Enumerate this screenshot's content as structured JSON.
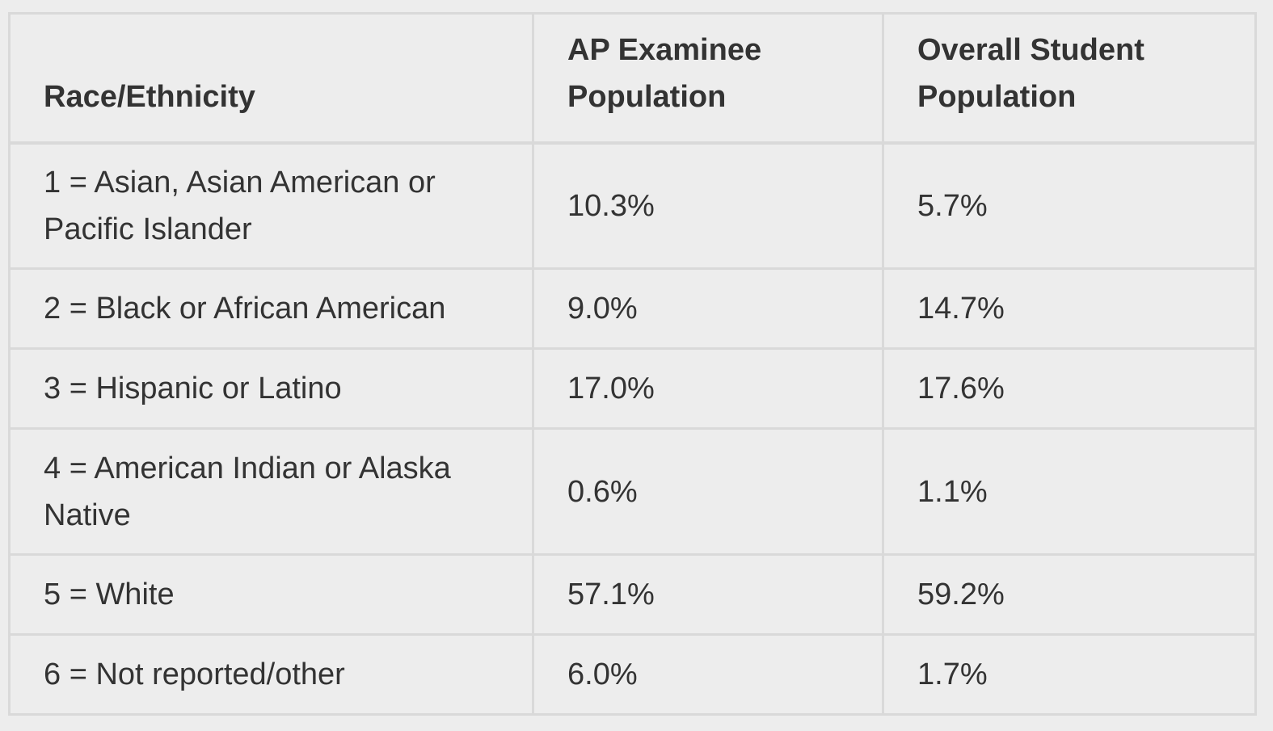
{
  "table": {
    "headers": [
      "Race/Ethnicity",
      "AP Examinee Population",
      "Overall Student Population"
    ],
    "header_lines": [
      [
        "Race/Ethnicity"
      ],
      [
        "AP Examinee",
        "Population"
      ],
      [
        "Overall Student",
        "Population"
      ]
    ],
    "rows": [
      {
        "race": "1 = Asian, Asian American or Pacific Islander",
        "race_lines": [
          "1 = Asian, Asian American or",
          "Pacific Islander"
        ],
        "ap": "10.3%",
        "overall": "5.7%"
      },
      {
        "race": "2 = Black or African American",
        "race_lines": [
          "2 = Black or African American"
        ],
        "ap": "9.0%",
        "overall": "14.7%"
      },
      {
        "race": "3 = Hispanic or Latino",
        "race_lines": [
          "3 = Hispanic or Latino"
        ],
        "ap": "17.0%",
        "overall": "17.6%"
      },
      {
        "race": "4 = American Indian or Alaska Native",
        "race_lines": [
          "4 = American Indian or Alaska",
          "Native"
        ],
        "ap": "0.6%",
        "overall": "1.1%"
      },
      {
        "race": "5 = White",
        "race_lines": [
          "5 = White"
        ],
        "ap": "57.1%",
        "overall": "59.2%"
      },
      {
        "race": "6 = Not reported/other",
        "race_lines": [
          "6 = Not reported/other"
        ],
        "ap": "6.0%",
        "overall": "1.7%"
      }
    ]
  },
  "colors": {
    "background": "#ededed",
    "border": "#d9d9d9",
    "text": "#333333"
  }
}
